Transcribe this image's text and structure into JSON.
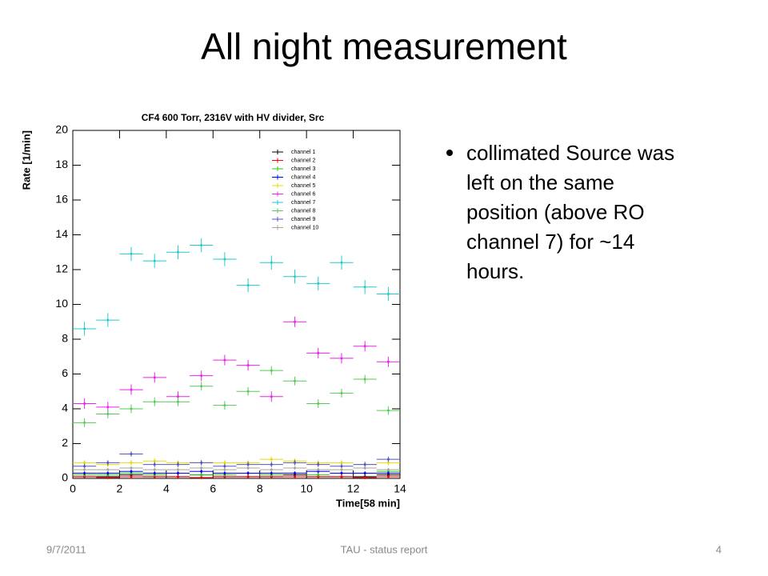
{
  "slide": {
    "title": "All night measurement",
    "bullet": {
      "lines": [
        "collimated Source was",
        "left on the same",
        "position (above RO",
        "channel 7) for ~14",
        "hours."
      ]
    },
    "footer": {
      "date": "9/7/2011",
      "center": "TAU - status report",
      "page": "4"
    }
  },
  "chart_data": {
    "type": "errorbar",
    "title": "CF4 600 Torr, 2316V with HV divider, Src",
    "xlabel": "Time[58 min]",
    "ylabel": "Rate [1/min]",
    "x": [
      0.5,
      1.5,
      2.5,
      3.5,
      4.5,
      5.5,
      6.5,
      7.5,
      8.5,
      9.5,
      10.5,
      11.5,
      12.5,
      13.5
    ],
    "xerr": 0.5,
    "xlim": [
      0,
      14
    ],
    "xticks": [
      0,
      2,
      4,
      6,
      8,
      10,
      12,
      14
    ],
    "ylim": [
      0,
      20
    ],
    "yticks": [
      0,
      2,
      4,
      6,
      8,
      10,
      12,
      14,
      16,
      18,
      20
    ],
    "grid": false,
    "legend": "upper right",
    "series": [
      {
        "name": "channel 1",
        "color": "#000000",
        "yerr": 0.1,
        "values": [
          0.1,
          0.1,
          0.2,
          0.1,
          0.1,
          0.2,
          0.1,
          0.1,
          0.1,
          0.2,
          0.1,
          0.1,
          0.1,
          0.2
        ]
      },
      {
        "name": "channel 2",
        "color": "#ff0000",
        "yerr": 0.1,
        "values": [
          0.1,
          0.05,
          0.1,
          0.1,
          0.1,
          0.05,
          0.1,
          0.1,
          0.1,
          0.1,
          0.1,
          0.1,
          0.05,
          0.1
        ]
      },
      {
        "name": "channel 3",
        "color": "#22cc22",
        "yerr": 0.1,
        "values": [
          0.2,
          0.2,
          0.3,
          0.2,
          0.3,
          0.2,
          0.2,
          0.3,
          0.2,
          0.3,
          0.2,
          0.3,
          0.3,
          0.4
        ]
      },
      {
        "name": "channel 4",
        "color": "#0000ff",
        "yerr": 0.1,
        "values": [
          0.3,
          0.3,
          0.4,
          0.3,
          0.3,
          0.4,
          0.3,
          0.3,
          0.3,
          0.3,
          0.4,
          0.3,
          0.3,
          0.3
        ]
      },
      {
        "name": "channel 5",
        "color": "#e8dc00",
        "yerr": 0.15,
        "values": [
          0.9,
          0.8,
          0.9,
          1.0,
          0.9,
          0.9,
          0.9,
          0.9,
          1.1,
          1.0,
          0.9,
          0.9,
          0.8,
          0.9
        ]
      },
      {
        "name": "channel 6",
        "color": "#ee22ee",
        "yerr": 0.3,
        "values": [
          4.3,
          4.1,
          5.1,
          5.8,
          4.7,
          5.9,
          6.8,
          6.5,
          4.7,
          9.0,
          7.2,
          6.9,
          7.6,
          6.7
        ]
      },
      {
        "name": "channel 7",
        "color": "#22cccc",
        "yerr": 0.4,
        "values": [
          8.6,
          9.1,
          12.9,
          12.5,
          13.0,
          13.4,
          12.6,
          11.1,
          12.4,
          11.6,
          11.2,
          12.4,
          11.0,
          10.6
        ]
      },
      {
        "name": "channel 8",
        "color": "#55cc55",
        "yerr": 0.25,
        "values": [
          3.2,
          3.7,
          4.0,
          4.4,
          4.4,
          5.3,
          4.2,
          5.0,
          6.2,
          5.6,
          4.3,
          4.9,
          5.7,
          3.9
        ]
      },
      {
        "name": "channel 9",
        "color": "#5555cc",
        "yerr": 0.15,
        "values": [
          0.7,
          0.9,
          1.4,
          0.8,
          0.8,
          0.9,
          0.7,
          0.8,
          0.8,
          0.9,
          0.8,
          0.7,
          0.8,
          1.1
        ]
      },
      {
        "name": "channel 10",
        "color": "#aaa599",
        "yerr": 0.1,
        "values": [
          0.5,
          0.5,
          0.6,
          0.5,
          0.5,
          0.6,
          0.5,
          0.6,
          0.5,
          0.6,
          0.5,
          0.5,
          0.6,
          0.5
        ]
      }
    ]
  }
}
